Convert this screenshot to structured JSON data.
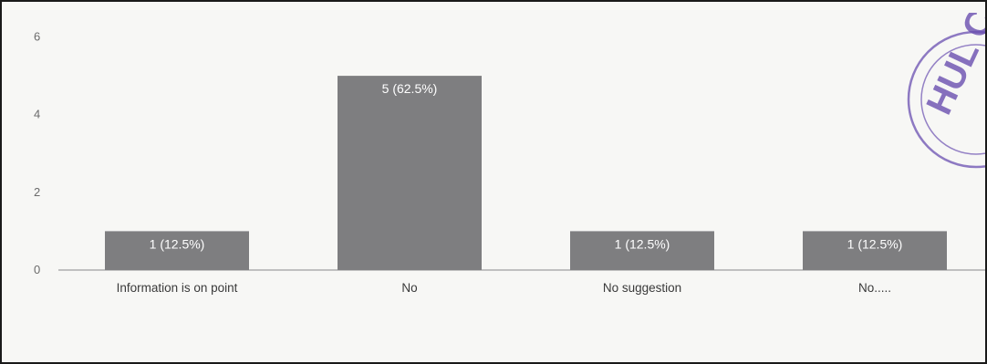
{
  "chart_data": {
    "type": "bar",
    "categories": [
      "Information is on point",
      "No",
      "No suggestion",
      "No....."
    ],
    "values": [
      1,
      5,
      1,
      1
    ],
    "data_labels": [
      "1 (12.5%)",
      "5 (62.5%)",
      "1 (12.5%)",
      "1 (12.5%)"
    ],
    "y_ticks": [
      0,
      2,
      4,
      6
    ],
    "ylim": [
      0,
      6.2
    ],
    "grid": false,
    "bar_color": "#7e7e80",
    "title": "",
    "xlabel": "",
    "ylabel": ""
  },
  "stamp": {
    "text": "HUL CO",
    "color": "#6a4fb0"
  }
}
